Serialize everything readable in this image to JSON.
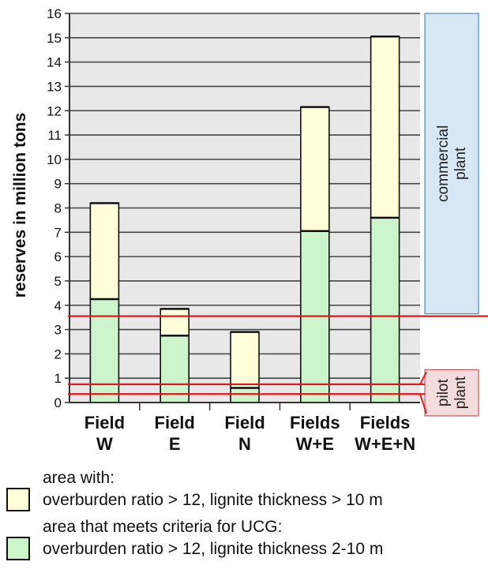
{
  "chart_data": {
    "type": "bar",
    "stacked": true,
    "ylabel": "reserves in million tons",
    "ylim": [
      0,
      16
    ],
    "yticks": [
      0,
      1,
      2,
      3,
      4,
      5,
      6,
      7,
      8,
      9,
      10,
      11,
      12,
      13,
      14,
      15,
      16
    ],
    "grid": true,
    "categories": [
      {
        "line1": "Field",
        "line2": "W"
      },
      {
        "line1": "Field",
        "line2": "E"
      },
      {
        "line1": "Field",
        "line2": "N"
      },
      {
        "line1": "Fields",
        "line2": "W+E"
      },
      {
        "line1": "Fields",
        "line2": "W+E+N"
      }
    ],
    "series": [
      {
        "key": "ucg",
        "values": [
          4.25,
          2.75,
          0.6,
          7.05,
          7.6
        ],
        "color": "#ccf5cc"
      },
      {
        "key": "area",
        "values": [
          3.95,
          1.1,
          2.3,
          5.1,
          7.45
        ],
        "color": "#ffffd9"
      }
    ],
    "thresholds": [
      {
        "value": 3.55,
        "color": "#e8141a"
      },
      {
        "value": 0.75,
        "color": "#e8141a"
      },
      {
        "value": 0.35,
        "color": "#e8141a"
      }
    ],
    "annotations": [
      {
        "label_lines": [
          "commercial",
          "plant"
        ],
        "range": [
          3.65,
          16
        ],
        "fill": "#d7e8f4",
        "stroke": "#4a8cc4"
      },
      {
        "label_lines": [
          "pilot",
          "plant"
        ],
        "range": [
          -0.55,
          1.35
        ],
        "fill": "#f4dcdc",
        "stroke": "#c45a5a"
      }
    ],
    "plot_background": "#e8e8e8"
  },
  "legend": [
    {
      "series": "area",
      "color": "#ffffd9",
      "line1": "area with:",
      "line2": "overburden ratio > 12, lignite thickness > 10 m"
    },
    {
      "series": "ucg",
      "color": "#ccf5cc",
      "line1": "area that meets criteria for UCG:",
      "line2": "overburden ratio > 12, lignite thickness 2-10 m"
    }
  ]
}
